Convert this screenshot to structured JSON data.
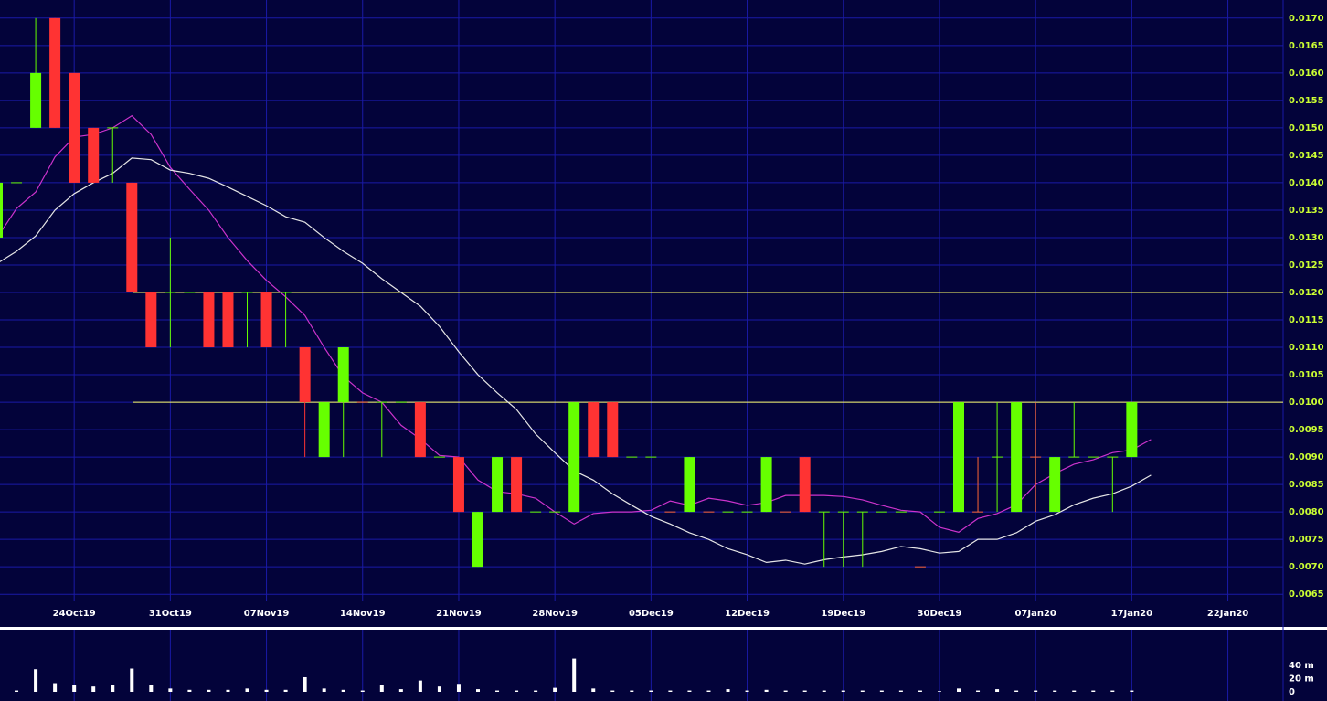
{
  "chart_data": [
    {
      "type": "candlestick",
      "categories": [
        null,
        null,
        null,
        null,
        "24Oct19",
        null,
        null,
        null,
        null,
        "31Oct19",
        null,
        null,
        null,
        null,
        "07Nov19",
        null,
        null,
        null,
        null,
        "14Nov19",
        null,
        null,
        null,
        null,
        "21Nov19",
        null,
        null,
        null,
        null,
        "28Nov19",
        null,
        null,
        null,
        null,
        "05Dec19",
        null,
        null,
        null,
        null,
        "12Dec19",
        null,
        null,
        null,
        null,
        "19Dec19",
        null,
        null,
        null,
        null,
        "30Dec19",
        null,
        null,
        null,
        null,
        "07Jan20",
        null,
        null,
        null,
        null,
        "17Jan20",
        null,
        null,
        null,
        null,
        "22Jan20"
      ],
      "open": [
        0.013,
        0.014,
        0.015,
        0.017,
        0.016,
        0.015,
        0.015,
        0.014,
        0.012,
        0.012,
        0.012,
        0.012,
        0.012,
        0.012,
        0.012,
        0.012,
        0.011,
        0.009,
        0.01,
        0.01,
        0.01,
        0.01,
        0.01,
        0.009,
        0.009,
        0.007,
        0.008,
        0.009,
        0.008,
        0.008,
        0.008,
        0.01,
        0.01,
        0.009,
        0.009,
        0.008,
        0.008,
        0.008,
        0.008,
        0.008,
        0.008,
        0.008,
        0.009,
        0.008,
        0.008,
        0.008,
        0.008,
        0.008,
        0.007,
        0.008,
        0.008,
        0.008,
        0.009,
        0.008,
        0.009,
        0.008,
        0.009,
        0.009,
        0.009,
        0.009,
        null,
        null,
        null,
        null,
        null
      ],
      "high": [
        0.014,
        0.014,
        0.017,
        0.017,
        0.016,
        0.015,
        0.015,
        0.014,
        0.012,
        0.013,
        0.012,
        0.012,
        0.012,
        0.012,
        0.012,
        0.012,
        0.011,
        0.01,
        0.011,
        0.01,
        0.01,
        0.01,
        0.01,
        0.009,
        0.009,
        0.008,
        0.009,
        0.009,
        0.008,
        0.008,
        0.01,
        0.01,
        0.01,
        0.009,
        0.009,
        0.008,
        0.009,
        0.008,
        0.008,
        0.008,
        0.009,
        0.008,
        0.009,
        0.008,
        0.008,
        0.008,
        0.008,
        0.008,
        0.007,
        0.008,
        0.01,
        0.009,
        0.01,
        0.01,
        0.01,
        0.009,
        0.01,
        0.009,
        0.009,
        0.01,
        null,
        null,
        null,
        null,
        null
      ],
      "low": [
        0.013,
        0.014,
        0.015,
        0.015,
        0.014,
        0.014,
        0.014,
        0.012,
        0.011,
        0.011,
        0.012,
        0.011,
        0.011,
        0.011,
        0.011,
        0.011,
        0.009,
        0.009,
        0.009,
        0.01,
        0.009,
        0.01,
        0.009,
        0.009,
        0.008,
        0.007,
        0.008,
        0.008,
        0.008,
        0.008,
        0.008,
        0.009,
        0.009,
        0.009,
        0.009,
        0.008,
        0.008,
        0.008,
        0.008,
        0.008,
        0.008,
        0.008,
        0.008,
        0.007,
        0.007,
        0.007,
        0.008,
        0.008,
        0.007,
        0.008,
        0.008,
        0.008,
        0.008,
        0.008,
        0.008,
        0.008,
        0.009,
        0.009,
        0.008,
        0.009,
        null,
        null,
        null,
        null,
        null
      ],
      "close": [
        0.014,
        0.014,
        0.016,
        0.015,
        0.014,
        0.014,
        0.015,
        0.012,
        0.011,
        0.012,
        0.012,
        0.011,
        0.011,
        0.012,
        0.011,
        0.012,
        0.01,
        0.01,
        0.011,
        0.01,
        0.01,
        0.01,
        0.009,
        0.009,
        0.008,
        0.008,
        0.009,
        0.008,
        0.008,
        0.008,
        0.01,
        0.009,
        0.009,
        0.009,
        0.009,
        0.008,
        0.009,
        0.008,
        0.008,
        0.008,
        0.009,
        0.008,
        0.008,
        0.008,
        0.008,
        0.008,
        0.008,
        0.008,
        0.007,
        0.008,
        0.01,
        0.008,
        0.009,
        0.01,
        0.009,
        0.009,
        0.009,
        0.009,
        0.009,
        0.01,
        null,
        null,
        null,
        null,
        null
      ],
      "up_color": "#66ff00",
      "down_color": "#ff3333",
      "doji_down_color": "#ff6633",
      "lines": [
        {
          "color": "#cc33cc",
          "values": [
            0.013,
            0.01353,
            0.01383,
            0.01447,
            0.01483,
            0.01488,
            0.015,
            0.01522,
            0.01488,
            0.01428,
            0.01388,
            0.0135,
            0.013,
            0.01258,
            0.01222,
            0.01192,
            0.01158,
            0.011,
            0.01047,
            0.01017,
            0.01,
            0.00958,
            0.00933,
            0.00903,
            0.009,
            0.00858,
            0.00837,
            0.00833,
            0.00825,
            0.008,
            0.00778,
            0.00797,
            0.008,
            0.008,
            0.00803,
            0.0082,
            0.00812,
            0.00825,
            0.0082,
            0.00812,
            0.00817,
            0.0083,
            0.0083,
            0.0083,
            0.00828,
            0.00822,
            0.00812,
            0.00803,
            0.008,
            0.00772,
            0.00763,
            0.00788,
            0.00797,
            0.00813,
            0.0085,
            0.0087,
            0.00887,
            0.00895,
            0.00908,
            0.00913,
            0.00932,
            null,
            null,
            null,
            null
          ]
        },
        {
          "color": "#e6e6e6",
          "values": [
            0.01253,
            0.01275,
            0.01303,
            0.0135,
            0.0138,
            0.014,
            0.01417,
            0.01445,
            0.01442,
            0.01423,
            0.01417,
            0.01408,
            0.01392,
            0.01375,
            0.01358,
            0.01338,
            0.01328,
            0.013,
            0.01275,
            0.01253,
            0.01225,
            0.012,
            0.01175,
            0.01138,
            0.01092,
            0.0105,
            0.01017,
            0.00987,
            0.00942,
            0.00908,
            0.00875,
            0.00858,
            0.00833,
            0.00812,
            0.00792,
            0.00778,
            0.00762,
            0.0075,
            0.00733,
            0.00722,
            0.00708,
            0.00712,
            0.00705,
            0.00713,
            0.00718,
            0.00722,
            0.00728,
            0.00737,
            0.00733,
            0.00725,
            0.00728,
            0.0075,
            0.0075,
            0.00762,
            0.00783,
            0.00795,
            0.00813,
            0.00825,
            0.00833,
            0.00847,
            0.00867,
            null,
            null,
            null,
            null
          ]
        }
      ],
      "hlines": [
        0.012,
        0.01
      ],
      "hline_color": "#ffff66",
      "ylim": [
        0.00637,
        0.01733
      ],
      "yticks": [
        0.0065,
        {
          "value": 0.007,
          "label": "0.0070"
        },
        0.0075,
        {
          "value": 0.008,
          "label": "0.0080"
        },
        0.0085,
        {
          "value": 0.009,
          "label": "0.0090"
        },
        0.0095,
        {
          "value": 0.01,
          "label": "0.0100"
        },
        0.0105,
        {
          "value": 0.011,
          "label": "0.0110"
        },
        0.0115,
        {
          "value": 0.012,
          "label": "0.0120"
        },
        0.0125,
        {
          "value": 0.013,
          "label": "0.0130"
        },
        0.0135,
        {
          "value": 0.014,
          "label": "0.0140"
        },
        0.0145,
        {
          "value": 0.015,
          "label": "0.0150"
        },
        0.0155,
        {
          "value": 0.016,
          "label": "0.0160"
        },
        0.0165,
        {
          "value": 0.017,
          "label": "0.0170"
        }
      ],
      "grid": true
    },
    {
      "type": "bar",
      "color": "#ffffff",
      "values": [
        2,
        2,
        34,
        13,
        10,
        8,
        10,
        35,
        10,
        5,
        3,
        3,
        3,
        5,
        3,
        3,
        22,
        5,
        3,
        2,
        10,
        4,
        17,
        8,
        12,
        4,
        2,
        2,
        2,
        6,
        50,
        5,
        2,
        2,
        2,
        2,
        2,
        2,
        4,
        2,
        3,
        2,
        2,
        2,
        2,
        2,
        2,
        2,
        2,
        1,
        5,
        2,
        4,
        2,
        2,
        2,
        2,
        2,
        2,
        2,
        null,
        null,
        null,
        null,
        null
      ],
      "ylim": [
        0,
        92
      ],
      "yticks": [
        0,
        {
          "value": 20,
          "label": "20 m"
        },
        {
          "value": 40,
          "label": "40 m"
        }
      ]
    }
  ]
}
